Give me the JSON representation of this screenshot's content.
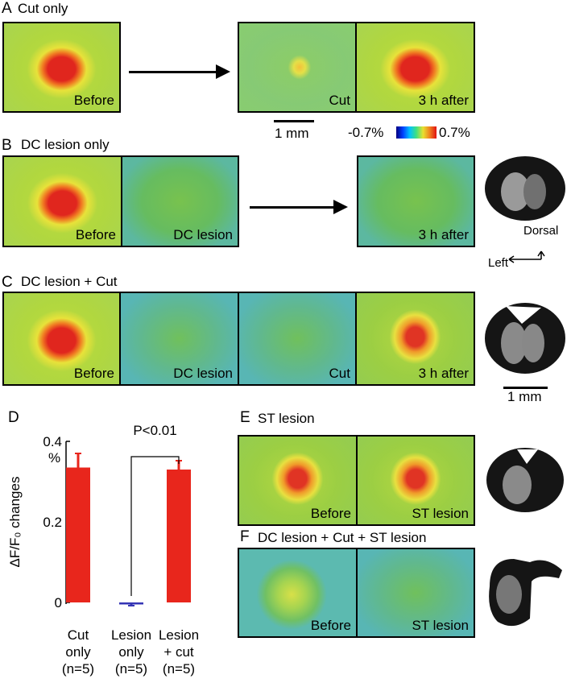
{
  "panels": [
    {
      "letter": "A",
      "title": "Cut only",
      "tiles": [
        {
          "caption": "Before"
        },
        {
          "caption": "Cut"
        },
        {
          "caption": "3 h after"
        }
      ],
      "scale_bar": "1 mm",
      "colorbar": {
        "min": "-0.7%",
        "max": "0.7%"
      }
    },
    {
      "letter": "B",
      "title": "DC lesion only",
      "tiles": [
        {
          "caption": "Before"
        },
        {
          "caption": "DC lesion"
        },
        {
          "caption": "3 h after"
        }
      ],
      "axes": {
        "up": "Dorsal",
        "side": "Left"
      }
    },
    {
      "letter": "C",
      "title": "DC lesion + Cut",
      "tiles": [
        {
          "caption": "Before"
        },
        {
          "caption": "DC lesion"
        },
        {
          "caption": "Cut"
        },
        {
          "caption": "3 h after"
        }
      ],
      "scale_bar": "1 mm"
    },
    {
      "letter": "D"
    },
    {
      "letter": "E",
      "title": "ST lesion",
      "tiles": [
        {
          "caption": "Before"
        },
        {
          "caption": "ST lesion"
        }
      ]
    },
    {
      "letter": "F",
      "title": "DC lesion + Cut + ST lesion",
      "tiles": [
        {
          "caption": "Before"
        },
        {
          "caption": "ST lesion"
        }
      ]
    }
  ],
  "chart_data": {
    "type": "bar",
    "ylabel": "ΔF/F₀ changes",
    "yunit": "%",
    "annotation": "P<0.01",
    "categories": [
      "Cut\nonly\n(n=5)",
      "Lesion\nonly\n(n=5)",
      "Lesion\n+ cut\n(n=5)"
    ],
    "values": [
      0.335,
      -0.005,
      0.33
    ],
    "errors": [
      0.035,
      0.003,
      0.022
    ],
    "colors": [
      "#e8261c",
      "#3535b5",
      "#e8261c"
    ],
    "ylim": [
      0,
      0.4
    ],
    "yticks": [
      0,
      0.2,
      0.4
    ]
  }
}
